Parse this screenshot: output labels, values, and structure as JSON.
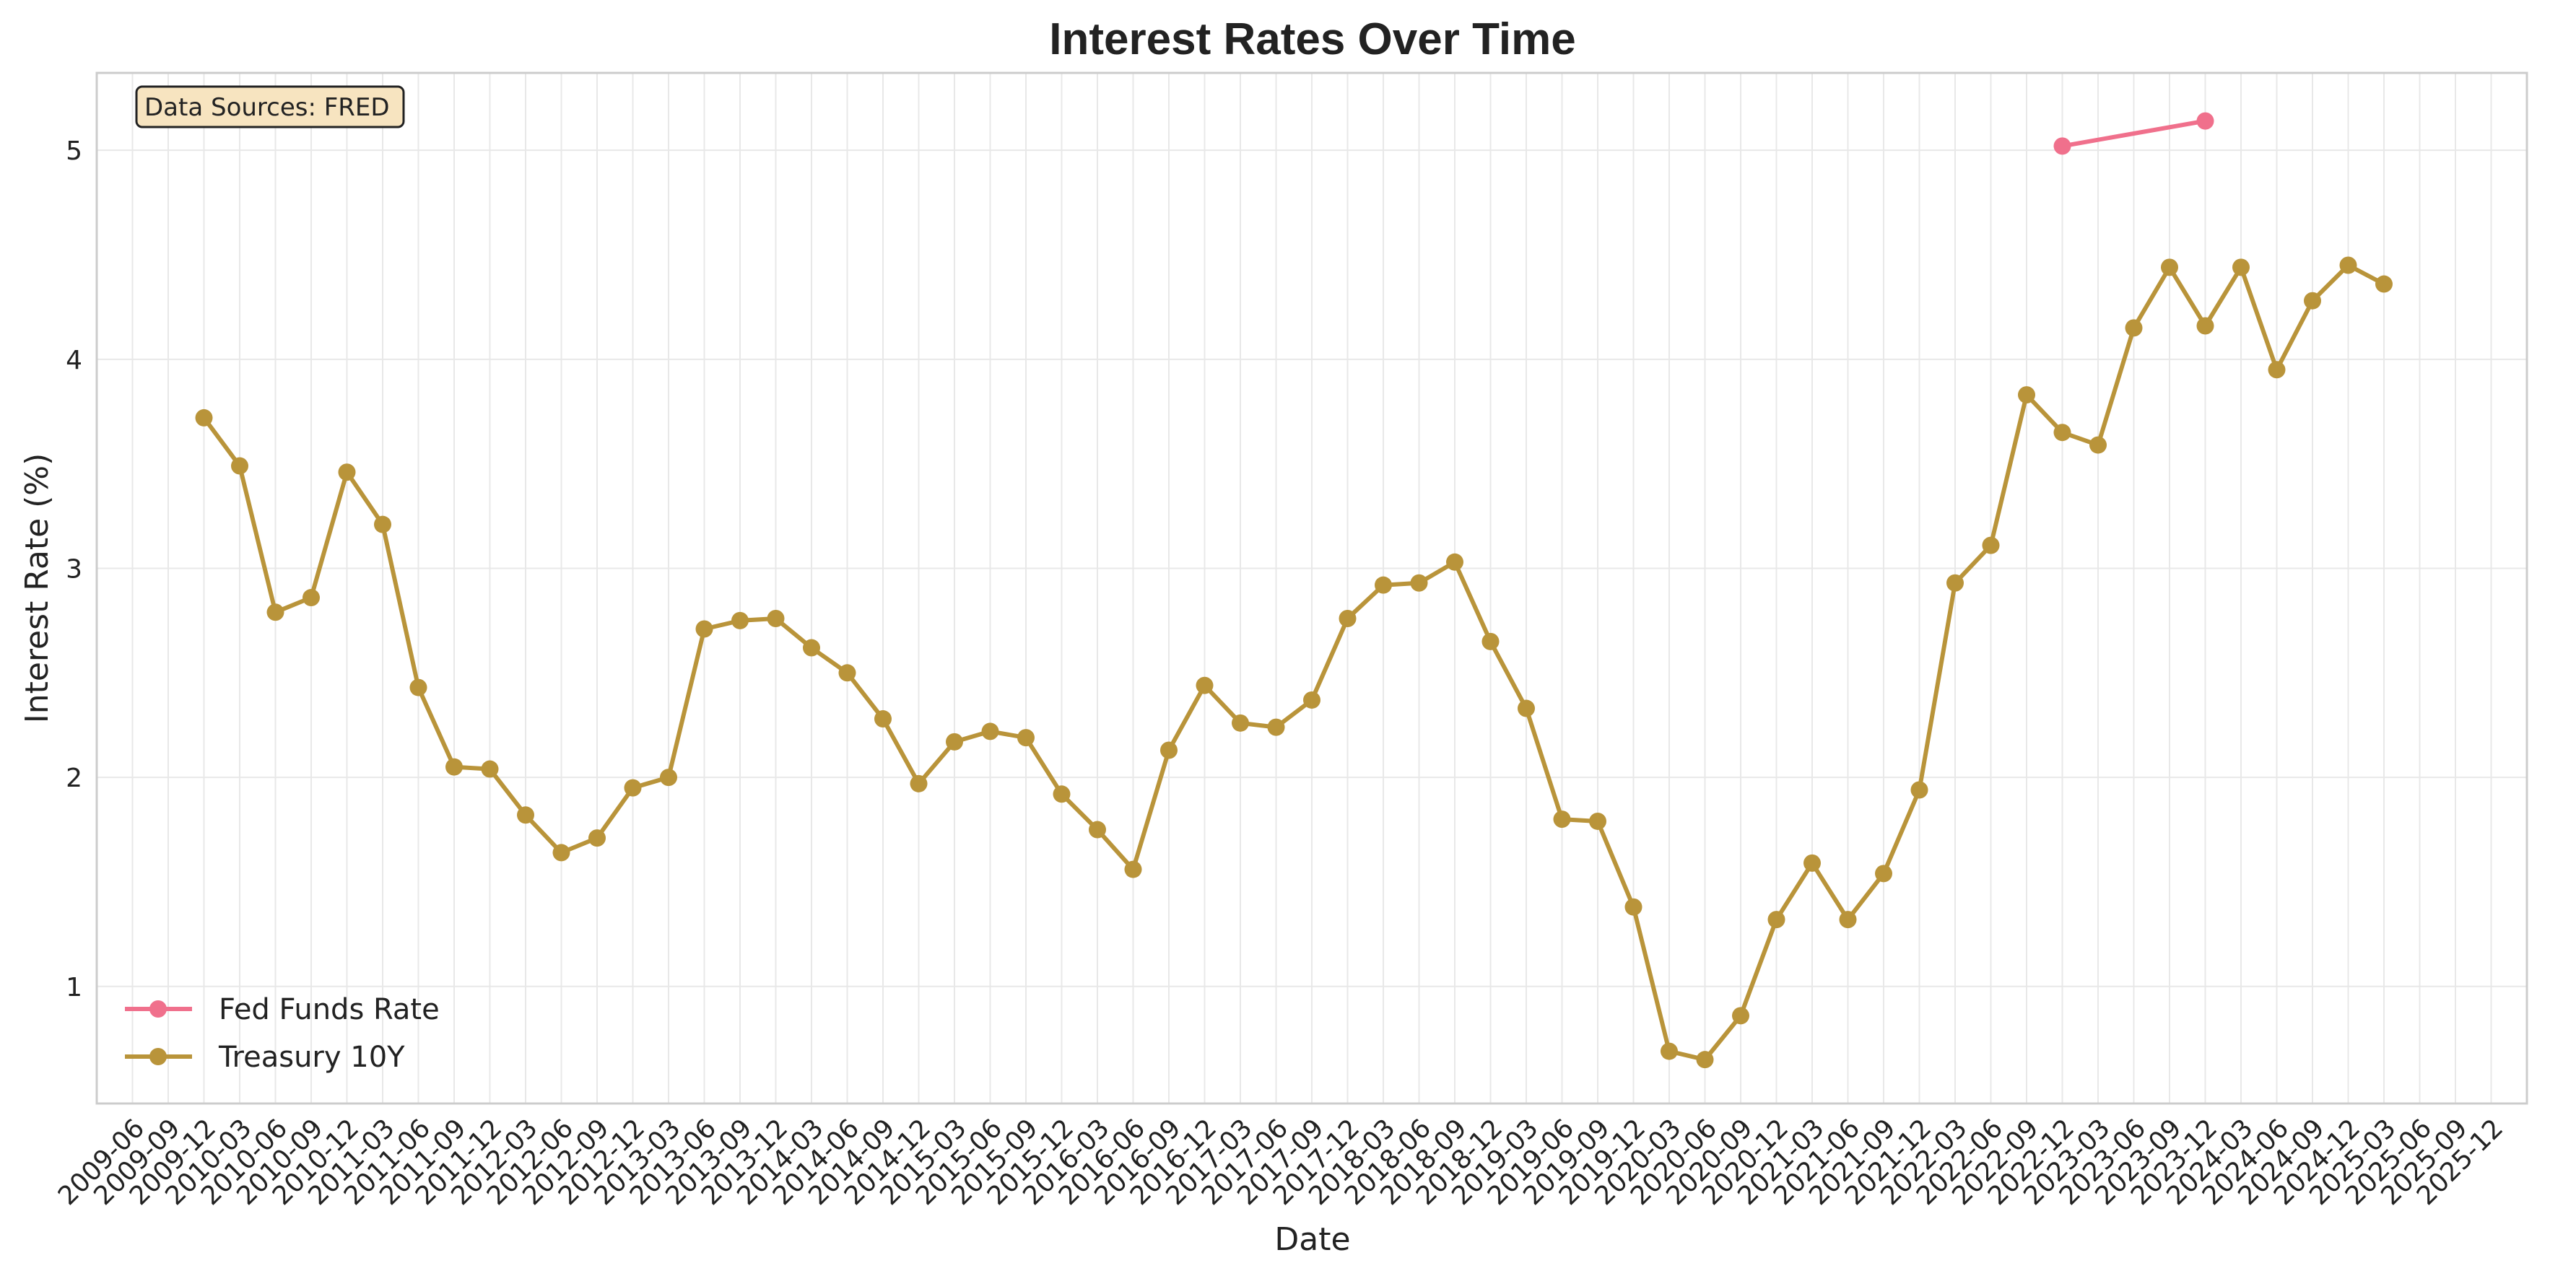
{
  "chart_data": {
    "type": "line",
    "title": "Interest Rates Over Time",
    "xlabel": "Date",
    "ylabel": "Interest Rate (%)",
    "grid": true,
    "legend_position": "lower-left",
    "annotation": "Data Sources: FRED",
    "ylim": [
      0.44,
      5.37
    ],
    "xlim": [
      "2009-06",
      "2025-12"
    ],
    "x_ticks": [
      "2009-06",
      "2009-09",
      "2009-12",
      "2010-03",
      "2010-06",
      "2010-09",
      "2010-12",
      "2011-03",
      "2011-06",
      "2011-09",
      "2011-12",
      "2012-03",
      "2012-06",
      "2012-09",
      "2012-12",
      "2013-03",
      "2013-06",
      "2013-09",
      "2013-12",
      "2014-03",
      "2014-06",
      "2014-09",
      "2014-12",
      "2015-03",
      "2015-06",
      "2015-09",
      "2015-12",
      "2016-03",
      "2016-06",
      "2016-09",
      "2016-12",
      "2017-03",
      "2017-06",
      "2017-09",
      "2017-12",
      "2018-03",
      "2018-06",
      "2018-09",
      "2018-12",
      "2019-03",
      "2019-06",
      "2019-09",
      "2019-12",
      "2020-03",
      "2020-06",
      "2020-09",
      "2020-12",
      "2021-03",
      "2021-06",
      "2021-09",
      "2021-12",
      "2022-03",
      "2022-06",
      "2022-09",
      "2022-12",
      "2023-03",
      "2023-06",
      "2023-09",
      "2023-12",
      "2024-03",
      "2024-06",
      "2024-09",
      "2024-12",
      "2025-03",
      "2025-06",
      "2025-09",
      "2025-12"
    ],
    "y_ticks": [
      1,
      2,
      3,
      4,
      5
    ],
    "series": [
      {
        "name": "Fed Funds Rate",
        "color": "#f0708c",
        "x": [
          "2022-12",
          "2023-12"
        ],
        "values": [
          5.02,
          5.14
        ]
      },
      {
        "name": "Treasury 10Y",
        "color": "#b9943a",
        "x": [
          "2009-12",
          "2010-03",
          "2010-06",
          "2010-09",
          "2010-12",
          "2011-03",
          "2011-06",
          "2011-09",
          "2011-12",
          "2012-03",
          "2012-06",
          "2012-09",
          "2012-12",
          "2013-03",
          "2013-06",
          "2013-09",
          "2013-12",
          "2014-03",
          "2014-06",
          "2014-09",
          "2014-12",
          "2015-03",
          "2015-06",
          "2015-09",
          "2015-12",
          "2016-03",
          "2016-06",
          "2016-09",
          "2016-12",
          "2017-03",
          "2017-06",
          "2017-09",
          "2017-12",
          "2018-03",
          "2018-06",
          "2018-09",
          "2018-12",
          "2019-03",
          "2019-06",
          "2019-09",
          "2019-12",
          "2020-03",
          "2020-06",
          "2020-09",
          "2020-12",
          "2021-03",
          "2021-06",
          "2021-09",
          "2021-12",
          "2022-03",
          "2022-06",
          "2022-09",
          "2022-12",
          "2023-03",
          "2023-06",
          "2023-09",
          "2023-12",
          "2024-03",
          "2024-06",
          "2024-09",
          "2024-12",
          "2025-03"
        ],
        "values": [
          3.72,
          3.49,
          2.79,
          2.86,
          3.46,
          3.21,
          2.43,
          2.05,
          2.04,
          1.82,
          1.64,
          1.71,
          1.95,
          2.0,
          2.71,
          2.75,
          2.76,
          2.62,
          2.5,
          2.28,
          1.97,
          2.17,
          2.22,
          2.19,
          1.92,
          1.75,
          1.56,
          2.13,
          2.44,
          2.26,
          2.24,
          2.37,
          2.76,
          2.92,
          2.93,
          3.03,
          2.65,
          2.33,
          1.8,
          1.79,
          1.38,
          0.69,
          0.65,
          0.86,
          1.32,
          1.59,
          1.32,
          1.54,
          1.94,
          2.93,
          3.11,
          3.83,
          3.65,
          3.59,
          4.15,
          4.44,
          4.16,
          4.44,
          3.95,
          4.28,
          4.45,
          4.36
        ]
      }
    ]
  }
}
